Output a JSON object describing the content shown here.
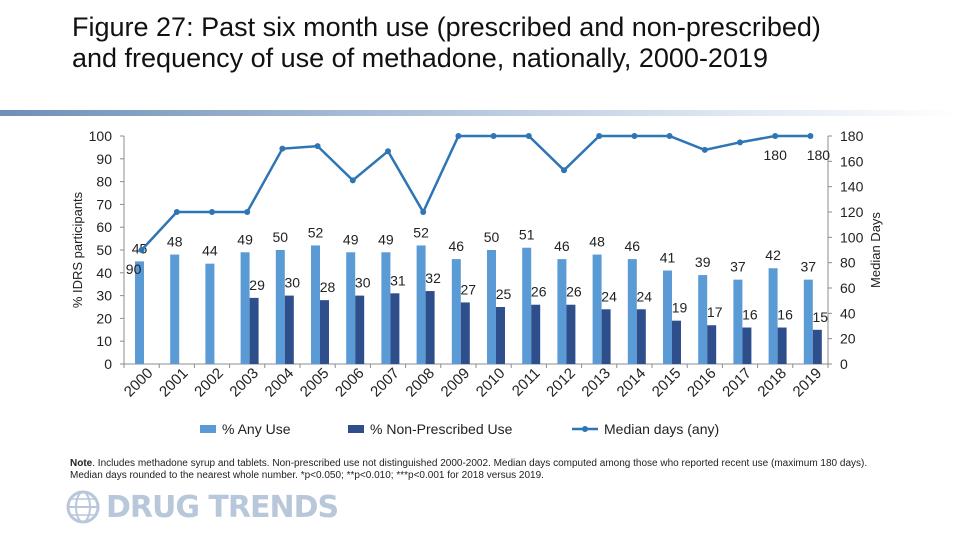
{
  "title": "Figure 27: Past six month use (prescribed and non-prescribed) and frequency of use of methadone, nationally, 2000-2019",
  "note": {
    "prefix": "Note",
    "text": ". Includes methadone syrup and tablets. Non-prescribed use not distinguished 2000-2002. Median days computed among those who reported recent use (maximum 180 days). Median days rounded to the nearest whole number. *p<0.050; **p<0.010; ***p<0.001 for 2018 versus 2019."
  },
  "logo": {
    "text": "DRUG TRENDS",
    "icon": "globe-logo-icon"
  },
  "colors": {
    "any_use": "#5b9bd5",
    "non_prescribed": "#2e4f8c",
    "median_line": "#2e75b6",
    "axis": "#8c8c8c"
  },
  "chart_data": {
    "type": "bar",
    "title": "Figure 27: Past six month use (prescribed and non-prescribed) and frequency of use of methadone, nationally, 2000-2019",
    "categories": [
      "2000",
      "2001",
      "2002",
      "2003",
      "2004",
      "2005",
      "2006",
      "2007",
      "2008",
      "2009",
      "2010",
      "2011",
      "2012",
      "2013",
      "2014",
      "2015",
      "2016",
      "2017",
      "2018",
      "2019"
    ],
    "series": [
      {
        "name": "% Any Use",
        "type": "bar",
        "axis": "left",
        "values": [
          45,
          48,
          44,
          49,
          50,
          52,
          49,
          49,
          52,
          46,
          50,
          51,
          46,
          48,
          46,
          41,
          39,
          37,
          42,
          37
        ]
      },
      {
        "name": "% Non-Prescribed Use",
        "type": "bar",
        "axis": "left",
        "values": [
          null,
          null,
          null,
          29,
          30,
          28,
          30,
          31,
          32,
          27,
          25,
          26,
          26,
          24,
          24,
          19,
          17,
          16,
          16,
          15
        ]
      },
      {
        "name": "Median days (any)",
        "type": "line",
        "axis": "right",
        "values": [
          90,
          120,
          120,
          120,
          170,
          172,
          145,
          168,
          120,
          180,
          180,
          180,
          153,
          180,
          180,
          180,
          169,
          175,
          180,
          180
        ]
      }
    ],
    "line_labels": [
      {
        "index": 0,
        "text": "90"
      },
      {
        "index": 18,
        "text": "180"
      },
      {
        "index": 19,
        "text": "180"
      }
    ],
    "ylabel": "% IDRS participants",
    "y2label": "Median Days",
    "ylim": [
      0,
      100
    ],
    "y2lim": [
      0,
      180
    ],
    "yticks": [
      0,
      10,
      20,
      30,
      40,
      50,
      60,
      70,
      80,
      90,
      100
    ],
    "y2ticks": [
      0,
      20,
      40,
      60,
      80,
      100,
      120,
      140,
      160,
      180
    ],
    "grid": false,
    "legend": "bottom"
  }
}
